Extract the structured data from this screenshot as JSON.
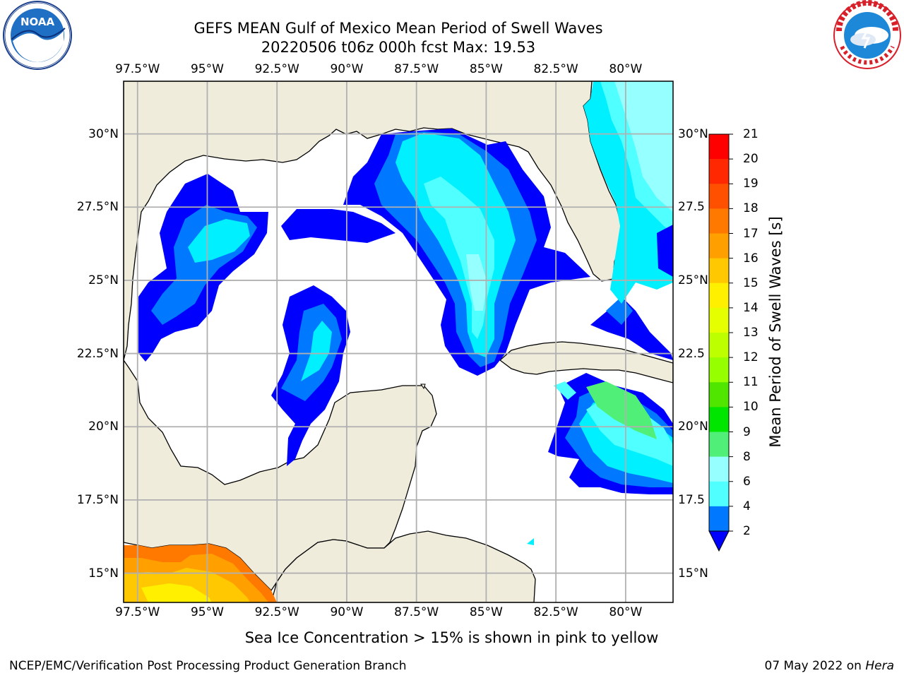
{
  "title_line1": "GEFS MEAN Gulf of Mexico Mean Period of Swell Waves",
  "title_line2": "20220506 t06z 000h fcst   Max: 19.53",
  "caption": "Sea Ice Concentration > 15% is shown in pink to yellow",
  "footer_left": "NCEP/EMC/Verification Post Processing Product Generation Branch",
  "footer_date": "07 May 2022 on",
  "footer_machine": "Hera",
  "logos": {
    "left": "noaa-logo",
    "right": "nws-logo"
  },
  "map": {
    "projection": "PlateCarree",
    "lon_range": [
      -98.0,
      -78.3
    ],
    "lat_range": [
      14.0,
      31.8
    ],
    "land_color": "#efecdc",
    "ocean_color": "#ffffff",
    "gridline_color": "#b0b0b0",
    "lon_ticks": [
      "97.5°W",
      "95°W",
      "92.5°W",
      "90°W",
      "87.5°W",
      "85°W",
      "82.5°W",
      "80°W"
    ],
    "lat_ticks_left": [
      "30°N",
      "27.5°N",
      "25°N",
      "22.5°N",
      "20°N",
      "17.5°N",
      "15°N"
    ],
    "lat_ticks_right": [
      "30°N",
      "27.5",
      "25°N",
      "22.5",
      "20°N",
      "17.5",
      "15°N"
    ]
  },
  "colorbar": {
    "label": "Mean Period of Swell Waves [s]",
    "levels": [
      "21",
      "20",
      "19",
      "18",
      "17",
      "16",
      "15",
      "14",
      "13",
      "12",
      "11",
      "10",
      "9",
      "8",
      "6",
      "4",
      "2"
    ],
    "colors": [
      "#ff0000",
      "#ff2800",
      "#ff5000",
      "#ff7800",
      "#ffa000",
      "#ffc800",
      "#fff000",
      "#e6ff00",
      "#beff00",
      "#96ff00",
      "#50e600",
      "#00e600",
      "#50f078",
      "#96ffff",
      "#50ffff",
      "#00f0ff",
      "#0078ff"
    ],
    "extend_color": "#0000ff"
  },
  "field_colors": {
    "lt2": "#0000ff",
    "2_4": "#0078ff",
    "4_6": "#00f0ff",
    "6_8": "#50ffff",
    "8_9": "#96ffff",
    "9_10": "#50f078",
    "17_18": "#ff7800",
    "16_17": "#ffa000",
    "15_16": "#ffc800",
    "14_15": "#fff000"
  }
}
